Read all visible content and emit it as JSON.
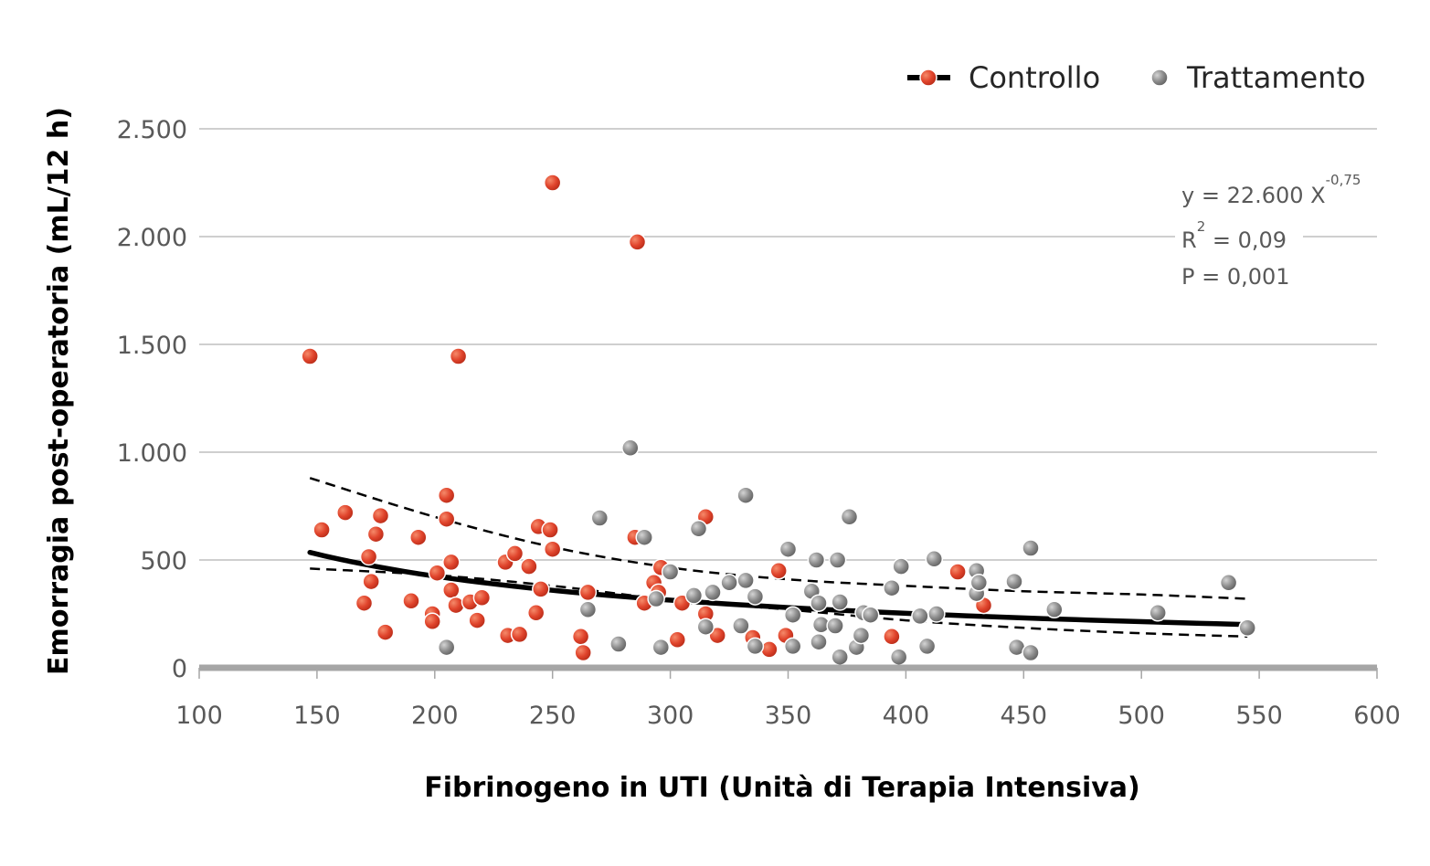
{
  "chart_data": {
    "type": "scatter",
    "xlabel": "Fibrinogeno in UTI (Unità di Terapia Intensiva)",
    "ylabel": "Emorragia post-operatoria (mL/12 h)",
    "xlim": [
      100,
      600
    ],
    "ylim": [
      0,
      2500
    ],
    "x_ticks": [
      100,
      150,
      200,
      250,
      300,
      350,
      400,
      450,
      500,
      550,
      600
    ],
    "x_tick_labels": [
      "100",
      "150",
      "200",
      "250",
      "300",
      "350",
      "400",
      "450",
      "500",
      "550",
      "600"
    ],
    "y_ticks": [
      0,
      500,
      1000,
      1500,
      2000,
      2500
    ],
    "y_tick_labels": [
      "0",
      "500",
      "1.000",
      "1.500",
      "2.000",
      "2.500"
    ],
    "grid": true,
    "legend_position": "top-right",
    "colors": {
      "controllo": "#e0442c",
      "trattamento": "#8c8c8c",
      "trend": "#000000",
      "grid": "#bfbfbf",
      "x_axis": "#a6a6a6"
    },
    "series": [
      {
        "name": "Controllo",
        "points": [
          [
            147,
            1445
          ],
          [
            152,
            640
          ],
          [
            162,
            720
          ],
          [
            170,
            300
          ],
          [
            172,
            515
          ],
          [
            173,
            400
          ],
          [
            175,
            620
          ],
          [
            177,
            705
          ],
          [
            179,
            165
          ],
          [
            190,
            310
          ],
          [
            193,
            605
          ],
          [
            199,
            250
          ],
          [
            199,
            215
          ],
          [
            201,
            440
          ],
          [
            205,
            800
          ],
          [
            205,
            690
          ],
          [
            207,
            490
          ],
          [
            207,
            360
          ],
          [
            209,
            290
          ],
          [
            210,
            1445
          ],
          [
            215,
            305
          ],
          [
            218,
            220
          ],
          [
            220,
            325
          ],
          [
            230,
            490
          ],
          [
            231,
            150
          ],
          [
            234,
            530
          ],
          [
            236,
            155
          ],
          [
            240,
            470
          ],
          [
            243,
            255
          ],
          [
            244,
            655
          ],
          [
            245,
            365
          ],
          [
            249,
            640
          ],
          [
            250,
            2250
          ],
          [
            250,
            550
          ],
          [
            262,
            145
          ],
          [
            263,
            70
          ],
          [
            265,
            350
          ],
          [
            285,
            605
          ],
          [
            286,
            1975
          ],
          [
            289,
            300
          ],
          [
            293,
            395
          ],
          [
            295,
            350
          ],
          [
            296,
            465
          ],
          [
            303,
            130
          ],
          [
            305,
            300
          ],
          [
            315,
            700
          ],
          [
            315,
            250
          ],
          [
            320,
            150
          ],
          [
            335,
            140
          ],
          [
            342,
            85
          ],
          [
            346,
            450
          ],
          [
            349,
            150
          ],
          [
            394,
            145
          ],
          [
            422,
            445
          ],
          [
            433,
            290
          ]
        ]
      },
      {
        "name": "Trattamento",
        "points": [
          [
            205,
            95
          ],
          [
            265,
            270
          ],
          [
            270,
            695
          ],
          [
            278,
            110
          ],
          [
            283,
            1020
          ],
          [
            289,
            605
          ],
          [
            294,
            320
          ],
          [
            296,
            95
          ],
          [
            300,
            445
          ],
          [
            310,
            335
          ],
          [
            312,
            645
          ],
          [
            315,
            190
          ],
          [
            318,
            350
          ],
          [
            325,
            395
          ],
          [
            330,
            195
          ],
          [
            332,
            800
          ],
          [
            332,
            405
          ],
          [
            336,
            330
          ],
          [
            336,
            100
          ],
          [
            350,
            550
          ],
          [
            352,
            100
          ],
          [
            352,
            245
          ],
          [
            360,
            355
          ],
          [
            362,
            500
          ],
          [
            363,
            300
          ],
          [
            363,
            120
          ],
          [
            364,
            200
          ],
          [
            370,
            195
          ],
          [
            371,
            500
          ],
          [
            372,
            305
          ],
          [
            372,
            50
          ],
          [
            376,
            700
          ],
          [
            379,
            95
          ],
          [
            381,
            150
          ],
          [
            382,
            255
          ],
          [
            385,
            245
          ],
          [
            394,
            370
          ],
          [
            397,
            50
          ],
          [
            398,
            470
          ],
          [
            406,
            240
          ],
          [
            409,
            100
          ],
          [
            412,
            505
          ],
          [
            413,
            250
          ],
          [
            430,
            450
          ],
          [
            430,
            345
          ],
          [
            431,
            395
          ],
          [
            446,
            400
          ],
          [
            447,
            95
          ],
          [
            453,
            70
          ],
          [
            453,
            555
          ],
          [
            463,
            270
          ],
          [
            507,
            255
          ],
          [
            537,
            395
          ],
          [
            545,
            185
          ]
        ]
      }
    ],
    "trend": {
      "type": "power",
      "coefficient": 22600,
      "exponent": -0.75,
      "x_range": [
        147,
        545
      ],
      "ci_upper": [
        [
          147,
          880
        ],
        [
          200,
          700
        ],
        [
          250,
          560
        ],
        [
          300,
          465
        ],
        [
          350,
          410
        ],
        [
          400,
          380
        ],
        [
          450,
          355
        ],
        [
          500,
          340
        ],
        [
          545,
          320
        ]
      ],
      "ci_lower": [
        [
          147,
          460
        ],
        [
          200,
          430
        ],
        [
          250,
          380
        ],
        [
          300,
          315
        ],
        [
          350,
          270
        ],
        [
          400,
          220
        ],
        [
          450,
          185
        ],
        [
          500,
          160
        ],
        [
          545,
          145
        ]
      ]
    },
    "annotation": {
      "line1_base": "y = 22.600 X",
      "line1_exp": "-0,75",
      "line2_base": "R",
      "line2_exp": "2",
      "line2_rest": " = 0,09",
      "line3": "P = 0,001"
    }
  }
}
